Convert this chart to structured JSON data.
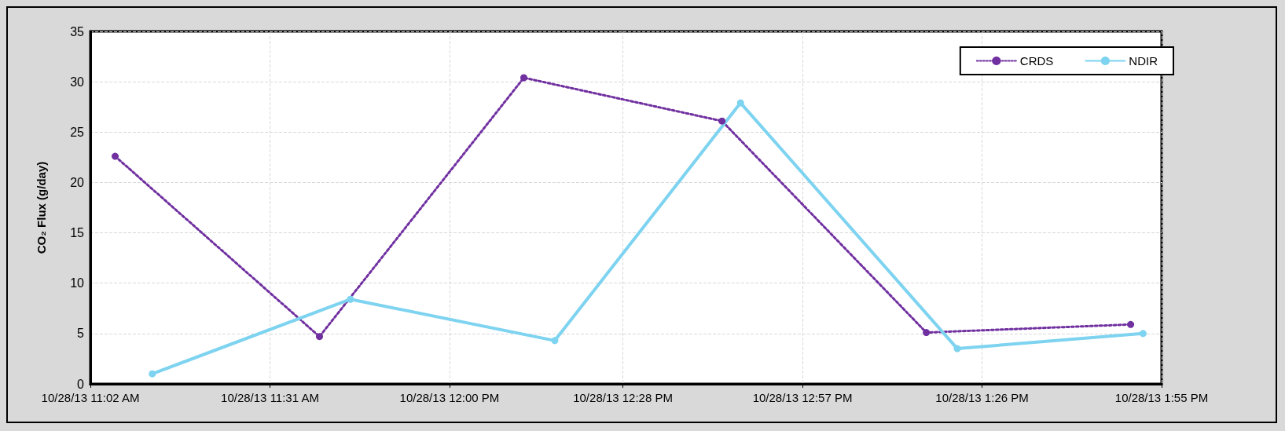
{
  "chart_data": {
    "type": "line",
    "ylabel": "CO₂ Flux (g/day)",
    "xlim": [
      "--10-28T11:02",
      "--10-28T13:55"
    ],
    "xticks": [
      {
        "value": "--10-28T11:02",
        "label": "10/28/13 11:02 AM"
      },
      {
        "value": "--10-28T11:31",
        "label": "10/28/13 11:31 AM"
      },
      {
        "value": "--10-28T12:00",
        "label": "10/28/13 12:00 PM"
      },
      {
        "value": "--10-28T12:28",
        "label": "10/28/13 12:28 PM"
      },
      {
        "value": "--10-28T12:57",
        "label": "10/28/13 12:57 PM"
      },
      {
        "value": "--10-28T13:26",
        "label": "10/28/13 1:26 PM"
      },
      {
        "value": "--10-28T13:55",
        "label": "10/28/13 1:55 PM"
      }
    ],
    "ylim": [
      0,
      35
    ],
    "yticks": [
      0,
      5,
      10,
      15,
      20,
      25,
      30,
      35
    ],
    "grid": true,
    "legend": "top right",
    "marker": "circle",
    "series": [
      {
        "name": "CRDS",
        "color": "#7030a0",
        "line_style": "dotted",
        "x": [
          "--10-28T11:06",
          "--10-28T11:39",
          "--10-28T12:12",
          "--10-28T12:44",
          "--10-28T13:17",
          "--10-28T13:50"
        ],
        "values": [
          22.6,
          4.7,
          30.4,
          26.1,
          5.1,
          5.9
        ]
      },
      {
        "name": "NDIR",
        "color": "#7dd3f0",
        "line_style": "solid",
        "x": [
          "--10-28T11:12",
          "--10-28T11:44",
          "--10-28T12:17",
          "--10-28T12:47",
          "--10-28T13:22",
          "--10-28T13:52"
        ],
        "values": [
          1.0,
          8.4,
          4.3,
          27.9,
          3.5,
          5.0
        ]
      }
    ]
  }
}
